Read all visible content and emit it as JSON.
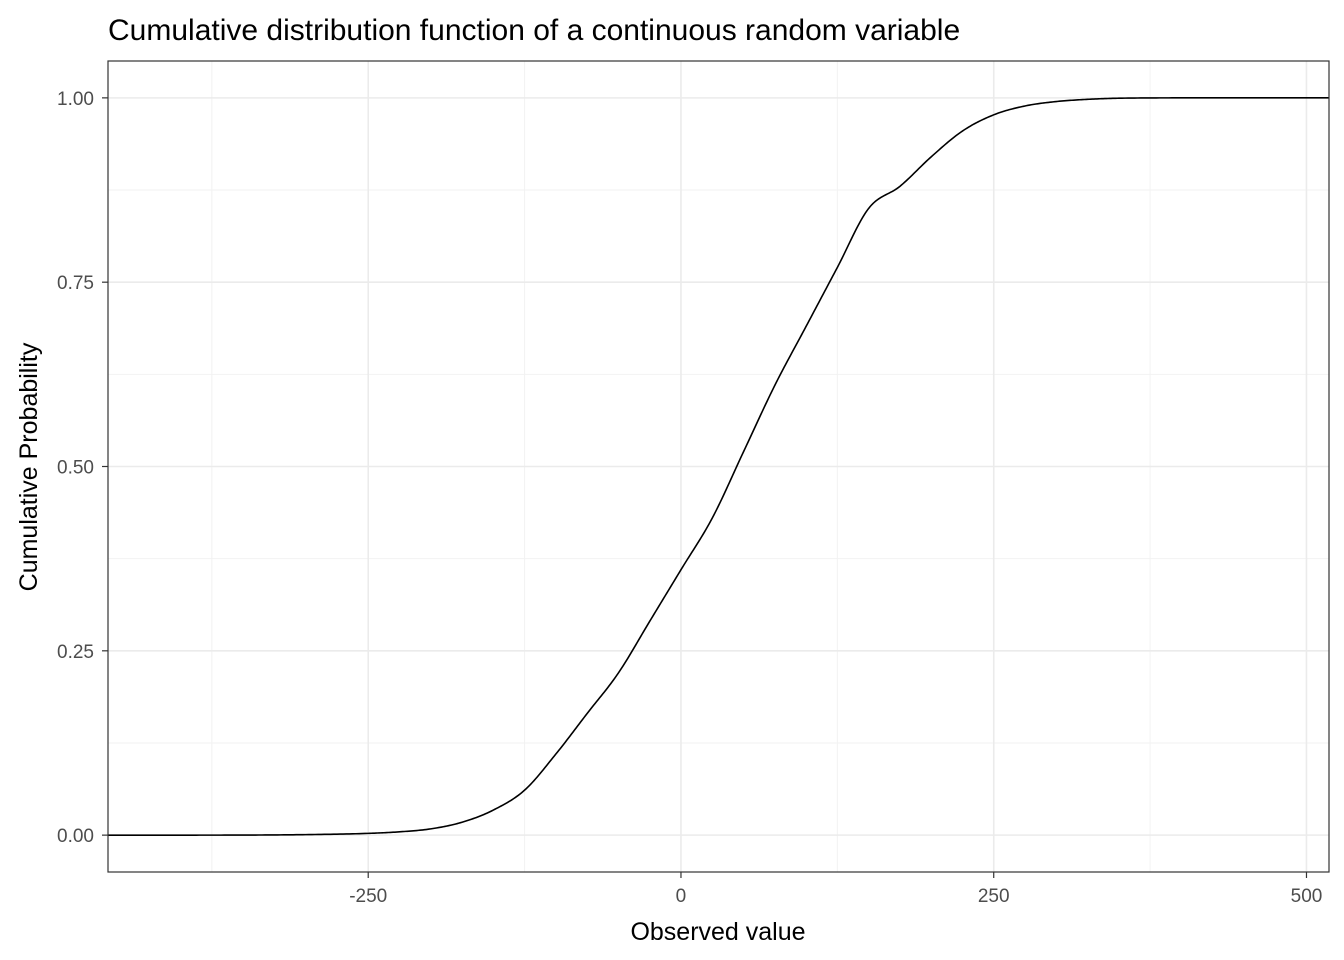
{
  "chart_data": {
    "type": "line",
    "title": "Cumulative distribution function of a continuous random variable",
    "xlabel": "Observed value",
    "ylabel": "Cumulative Probability",
    "xlim": [
      -458,
      518
    ],
    "ylim": [
      -0.05,
      1.05
    ],
    "x_ticks": [
      -250,
      0,
      250,
      500
    ],
    "x_tick_labels": [
      "-250",
      "0",
      "250",
      "500"
    ],
    "x_minor_ticks": [
      -375,
      -125,
      125,
      375
    ],
    "y_ticks": [
      0,
      0.25,
      0.5,
      0.75,
      1.0
    ],
    "y_tick_labels": [
      "0.00",
      "0.25",
      "0.50",
      "0.75",
      "1.00"
    ],
    "y_minor_ticks": [
      0.125,
      0.375,
      0.625,
      0.875
    ],
    "grid": true,
    "series": [
      {
        "color": "#000000",
        "x": [
          -458,
          -400,
          -350,
          -300,
          -250,
          -225,
          -200,
          -175,
          -150,
          -125,
          -100,
          -75,
          -50,
          -25,
          0,
          25,
          50,
          75,
          100,
          125,
          150,
          175,
          200,
          225,
          250,
          275,
          300,
          325,
          350,
          400,
          450,
          518
        ],
        "y": [
          0.0,
          0.0,
          0.0001,
          0.0007,
          0.0024,
          0.0045,
          0.0085,
          0.0175,
          0.034,
          0.061,
          0.11,
          0.165,
          0.22,
          0.29,
          0.36,
          0.43,
          0.52,
          0.61,
          0.69,
          0.77,
          0.85,
          0.88,
          0.92,
          0.955,
          0.977,
          0.989,
          0.995,
          0.998,
          0.9995,
          1.0,
          1.0,
          1.0
        ]
      }
    ]
  }
}
